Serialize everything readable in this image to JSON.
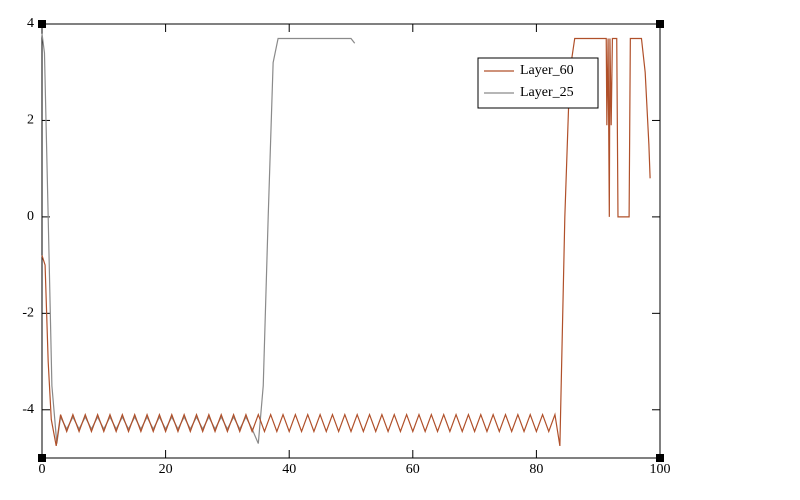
{
  "chart_data": {
    "type": "line",
    "xlim": [
      0,
      100
    ],
    "xticks": [
      0,
      20,
      40,
      60,
      80,
      100
    ],
    "ylim": [
      -5,
      4
    ],
    "yticks": [
      -4,
      -2,
      0,
      2,
      4
    ],
    "legend": "upper right",
    "series": [
      {
        "name": "Layer_60",
        "color": "#b0502a",
        "x": [
          0,
          0.5,
          1,
          1.5,
          2.3,
          3,
          4,
          5,
          6,
          7,
          8,
          9,
          10,
          11,
          12,
          13,
          14,
          15,
          16,
          17,
          18,
          19,
          20,
          21,
          22,
          23,
          24,
          25,
          26,
          27,
          28,
          29,
          30,
          31,
          32,
          33,
          34,
          35,
          36,
          37,
          38,
          39,
          40,
          41,
          42,
          43,
          44,
          45,
          46,
          47,
          48,
          49,
          50,
          51,
          52,
          53,
          54,
          55,
          56,
          57,
          58,
          59,
          60,
          61,
          62,
          63,
          64,
          65,
          66,
          67,
          68,
          69,
          70,
          71,
          72,
          73,
          74,
          75,
          76,
          77,
          78,
          79,
          80,
          81,
          82,
          83,
          83.8,
          84.6,
          85.4,
          86.2,
          91.3,
          91.4,
          91.6,
          91.8,
          91.9,
          92.1,
          92.3,
          93.0,
          93.2,
          95.0,
          95.2,
          97.0,
          97.6,
          98.2,
          98.4
        ],
        "values": [
          -0.8,
          -1.0,
          -3.0,
          -4.2,
          -4.75,
          -4.1,
          -4.45,
          -4.1,
          -4.45,
          -4.1,
          -4.45,
          -4.1,
          -4.45,
          -4.1,
          -4.45,
          -4.1,
          -4.45,
          -4.1,
          -4.45,
          -4.1,
          -4.45,
          -4.1,
          -4.45,
          -4.1,
          -4.45,
          -4.1,
          -4.45,
          -4.1,
          -4.45,
          -4.1,
          -4.45,
          -4.1,
          -4.45,
          -4.1,
          -4.45,
          -4.1,
          -4.45,
          -4.1,
          -4.45,
          -4.1,
          -4.45,
          -4.1,
          -4.45,
          -4.1,
          -4.45,
          -4.1,
          -4.45,
          -4.1,
          -4.45,
          -4.1,
          -4.45,
          -4.1,
          -4.45,
          -4.1,
          -4.45,
          -4.1,
          -4.45,
          -4.1,
          -4.45,
          -4.1,
          -4.45,
          -4.1,
          -4.45,
          -4.1,
          -4.45,
          -4.1,
          -4.45,
          -4.1,
          -4.45,
          -4.1,
          -4.45,
          -4.1,
          -4.45,
          -4.1,
          -4.45,
          -4.1,
          -4.45,
          -4.1,
          -4.45,
          -4.1,
          -4.45,
          -4.1,
          -4.45,
          -4.1,
          -4.45,
          -4.1,
          -4.75,
          0,
          3.0,
          3.7,
          3.7,
          1.9,
          3.7,
          0,
          3.7,
          1.9,
          3.7,
          3.7,
          0,
          0,
          3.7,
          3.7,
          3.0,
          1.5,
          0.8
        ]
      },
      {
        "name": "Layer_25",
        "color": "#8a8a8a",
        "x": [
          0,
          0.4,
          1,
          1.6,
          2.4,
          3,
          4,
          5,
          6,
          7,
          8,
          9,
          10,
          11,
          12,
          13,
          14,
          15,
          16,
          17,
          18,
          19,
          20,
          21,
          22,
          23,
          24,
          25,
          26,
          27,
          28,
          29,
          30,
          31,
          32,
          33,
          34,
          35,
          35.8,
          36.6,
          37.4,
          38.2,
          50,
          50.6
        ],
        "values": [
          3.8,
          3.4,
          0,
          -3.5,
          -4.7,
          -4.15,
          -4.4,
          -4.15,
          -4.4,
          -4.15,
          -4.4,
          -4.15,
          -4.4,
          -4.15,
          -4.4,
          -4.15,
          -4.4,
          -4.15,
          -4.4,
          -4.15,
          -4.4,
          -4.15,
          -4.4,
          -4.15,
          -4.4,
          -4.15,
          -4.4,
          -4.15,
          -4.4,
          -4.15,
          -4.4,
          -4.15,
          -4.4,
          -4.15,
          -4.4,
          -4.15,
          -4.4,
          -4.7,
          -3.5,
          0,
          3.2,
          3.7,
          3.7,
          3.6
        ]
      }
    ]
  }
}
